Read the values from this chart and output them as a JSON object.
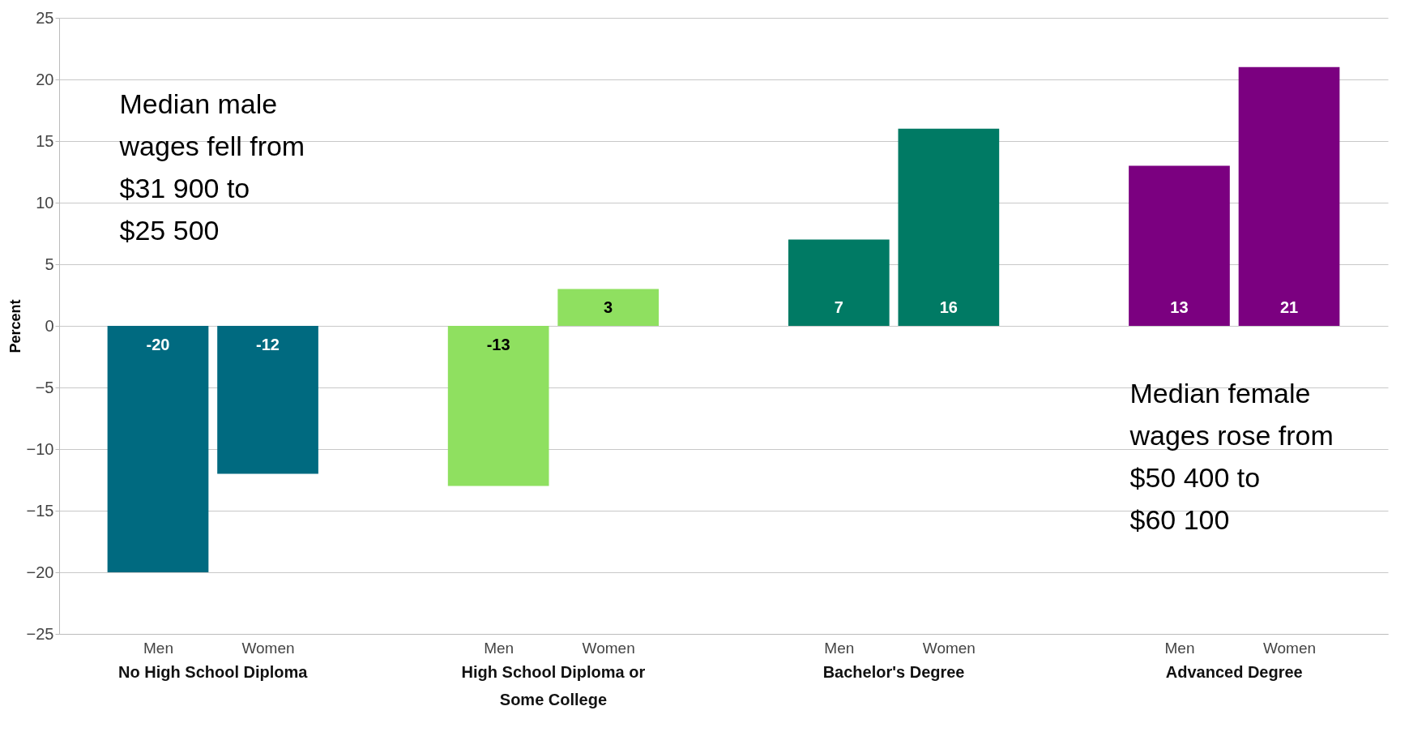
{
  "chart_data": {
    "type": "bar",
    "ylabel": "Percent",
    "categories": [
      "Men",
      "Women",
      "Men",
      "Women",
      "Men",
      "Women",
      "Men",
      "Women"
    ],
    "values": [
      -20,
      -12,
      -13,
      3,
      7,
      16,
      13,
      21
    ],
    "colors": [
      "#006a80",
      "#006a80",
      "#8fe060",
      "#8fe060",
      "#007a64",
      "#007a64",
      "#7b0080",
      "#7b0080"
    ],
    "ylim": [
      -25,
      25
    ],
    "yticks": [
      -25,
      -20,
      -15,
      -10,
      -5,
      0,
      5,
      10,
      15,
      20,
      25
    ],
    "grid": "y",
    "data_labels": true,
    "annotations": [
      "Median male wages fell from $31 900 to $25 500",
      "Median female wages rose from $50 400 to $60 100",
      "No High School Diploma",
      "High School Diploma or Some College",
      "Bachelor's Degree",
      "Advanced Degree"
    ]
  }
}
